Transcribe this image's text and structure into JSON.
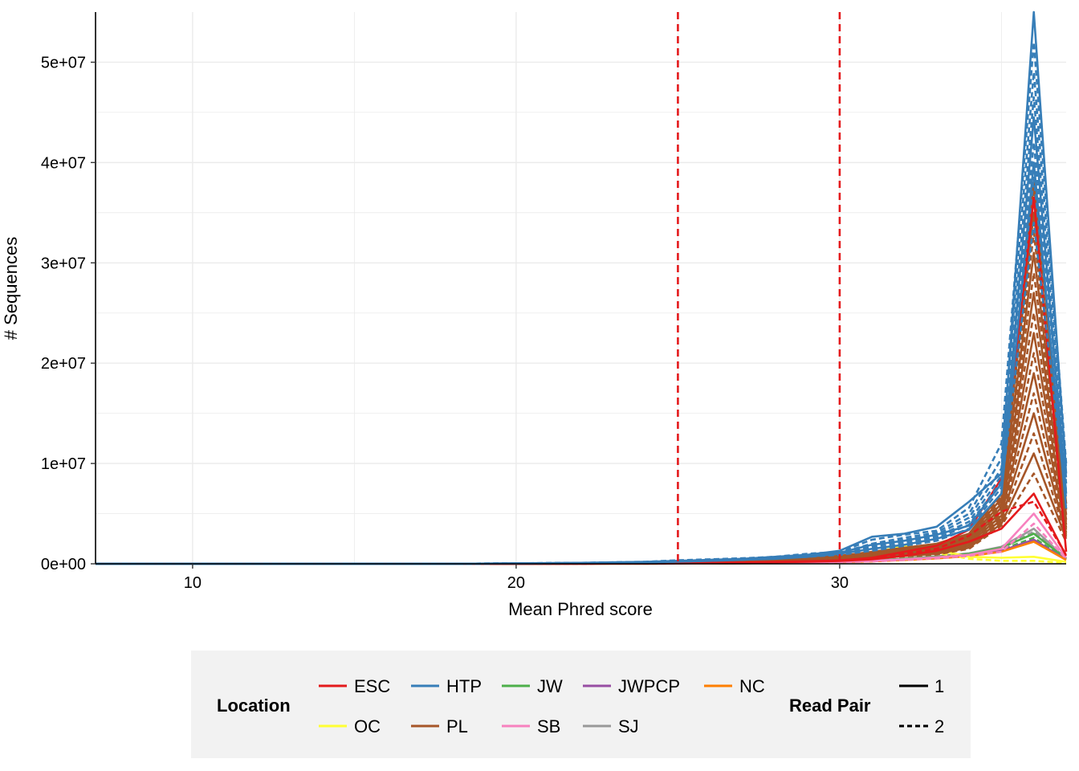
{
  "chart_data": {
    "type": "line",
    "title": "",
    "xlabel": "Mean Phred score",
    "ylabel": "# Sequences",
    "xlim": [
      7,
      37
    ],
    "ylim": [
      0,
      55000000
    ],
    "x_ticks": [
      10,
      20,
      30
    ],
    "x_tick_labels": [
      "10",
      "20",
      "30"
    ],
    "y_ticks": [
      0,
      10000000,
      20000000,
      30000000,
      40000000,
      50000000
    ],
    "y_tick_labels": [
      "0e+00",
      "1e+07",
      "2e+07",
      "3e+07",
      "4e+07",
      "5e+07"
    ],
    "grid": true,
    "reference_lines": [
      {
        "axis": "x",
        "value": 25,
        "color": "#e41a1c",
        "style": "dashed"
      },
      {
        "axis": "x",
        "value": 30,
        "color": "#e41a1c",
        "style": "dashed"
      }
    ],
    "x": [
      7,
      12,
      18,
      20,
      22,
      24,
      25,
      26,
      27,
      28,
      29,
      30,
      31,
      32,
      33,
      34,
      35,
      36,
      37
    ],
    "series": [
      {
        "location": "HTP",
        "read_pair": "1",
        "values": [
          0,
          0,
          0,
          50000,
          100000,
          200000,
          300000,
          400000,
          500000,
          700000,
          900000,
          1300000,
          2700000,
          3000000,
          3700000,
          6200000,
          9000000,
          55000000,
          9000000
        ]
      },
      {
        "location": "HTP",
        "read_pair": "1",
        "values": [
          0,
          0,
          0,
          40000,
          80000,
          150000,
          250000,
          350000,
          450000,
          600000,
          800000,
          1100000,
          1900000,
          2300000,
          2900000,
          3800000,
          8000000,
          44500000,
          7000000
        ]
      },
      {
        "location": "HTP",
        "read_pair": "1",
        "values": [
          0,
          0,
          0,
          30000,
          70000,
          130000,
          220000,
          300000,
          400000,
          500000,
          700000,
          1000000,
          1500000,
          1900000,
          2500000,
          3400000,
          7000000,
          40000000,
          5500000
        ]
      },
      {
        "location": "HTP",
        "read_pair": "2",
        "values": [
          0,
          0,
          0,
          50000,
          100000,
          200000,
          350000,
          450000,
          550000,
          700000,
          1000000,
          1200000,
          2400000,
          2900000,
          3300000,
          5600000,
          12000000,
          52000000,
          10000000
        ]
      },
      {
        "location": "HTP",
        "read_pair": "2",
        "values": [
          0,
          0,
          0,
          45000,
          90000,
          180000,
          300000,
          420000,
          520000,
          650000,
          900000,
          1100000,
          2000000,
          2600000,
          3100000,
          5000000,
          10500000,
          49000000,
          9500000
        ]
      },
      {
        "location": "HTP",
        "read_pair": "2",
        "values": [
          0,
          0,
          0,
          40000,
          85000,
          170000,
          280000,
          400000,
          480000,
          620000,
          850000,
          1050000,
          1800000,
          2400000,
          2900000,
          4600000,
          9500000,
          46500000,
          8500000
        ]
      },
      {
        "location": "HTP",
        "read_pair": "2",
        "values": [
          0,
          0,
          0,
          35000,
          80000,
          160000,
          260000,
          380000,
          460000,
          600000,
          800000,
          1000000,
          1700000,
          2200000,
          2700000,
          4200000,
          8800000,
          42000000,
          8000000
        ]
      },
      {
        "location": "HTP",
        "read_pair": "2",
        "values": [
          0,
          0,
          0,
          30000,
          70000,
          140000,
          240000,
          350000,
          430000,
          560000,
          750000,
          950000,
          1500000,
          2000000,
          2500000,
          3900000,
          8200000,
          38500000,
          7200000
        ]
      },
      {
        "location": "HTP",
        "read_pair": "2",
        "values": [
          0,
          0,
          0,
          30000,
          60000,
          120000,
          220000,
          320000,
          400000,
          520000,
          700000,
          900000,
          1300000,
          1800000,
          2300000,
          3500000,
          7600000,
          34000000,
          6500000
        ]
      },
      {
        "location": "PL",
        "read_pair": "1",
        "values": [
          0,
          0,
          0,
          20000,
          60000,
          110000,
          200000,
          280000,
          350000,
          450000,
          600000,
          800000,
          1200000,
          1600000,
          2000000,
          3000000,
          7000000,
          38000000,
          6000000
        ]
      },
      {
        "location": "PL",
        "read_pair": "1",
        "values": [
          0,
          0,
          0,
          20000,
          50000,
          100000,
          180000,
          250000,
          320000,
          420000,
          560000,
          750000,
          1100000,
          1450000,
          1850000,
          2800000,
          6500000,
          35000000,
          5400000
        ]
      },
      {
        "location": "PL",
        "read_pair": "1",
        "values": [
          0,
          0,
          0,
          15000,
          45000,
          90000,
          160000,
          230000,
          300000,
          390000,
          520000,
          700000,
          1000000,
          1300000,
          1700000,
          2600000,
          6000000,
          31000000,
          4900000
        ]
      },
      {
        "location": "PL",
        "read_pair": "1",
        "values": [
          0,
          0,
          0,
          15000,
          40000,
          80000,
          150000,
          210000,
          280000,
          360000,
          480000,
          650000,
          900000,
          1200000,
          1550000,
          2400000,
          5600000,
          27000000,
          4400000
        ]
      },
      {
        "location": "PL",
        "read_pair": "1",
        "values": [
          0,
          0,
          0,
          12000,
          35000,
          70000,
          130000,
          190000,
          250000,
          330000,
          440000,
          600000,
          820000,
          1100000,
          1400000,
          2200000,
          5200000,
          23000000,
          3900000
        ]
      },
      {
        "location": "PL",
        "read_pair": "1",
        "values": [
          0,
          0,
          0,
          10000,
          30000,
          60000,
          110000,
          170000,
          220000,
          300000,
          400000,
          540000,
          740000,
          980000,
          1250000,
          2000000,
          4800000,
          19000000,
          3400000
        ]
      },
      {
        "location": "PL",
        "read_pair": "1",
        "values": [
          0,
          0,
          0,
          10000,
          25000,
          50000,
          100000,
          150000,
          200000,
          270000,
          360000,
          490000,
          660000,
          880000,
          1120000,
          1800000,
          4400000,
          15000000,
          2900000
        ]
      },
      {
        "location": "PL",
        "read_pair": "1",
        "values": [
          0,
          0,
          0,
          8000,
          20000,
          40000,
          90000,
          130000,
          180000,
          240000,
          320000,
          440000,
          590000,
          780000,
          1000000,
          1600000,
          4000000,
          11000000,
          2500000
        ]
      },
      {
        "location": "PL",
        "read_pair": "2",
        "values": [
          0,
          0,
          0,
          20000,
          55000,
          105000,
          190000,
          270000,
          340000,
          440000,
          580000,
          780000,
          1150000,
          1550000,
          1950000,
          2900000,
          6800000,
          37000000,
          5800000
        ]
      },
      {
        "location": "PL",
        "read_pair": "2",
        "values": [
          0,
          0,
          0,
          18000,
          48000,
          95000,
          170000,
          240000,
          310000,
          400000,
          540000,
          720000,
          1050000,
          1400000,
          1780000,
          2700000,
          6300000,
          33000000,
          5200000
        ]
      },
      {
        "location": "PL",
        "read_pair": "2",
        "values": [
          0,
          0,
          0,
          14000,
          42000,
          85000,
          155000,
          220000,
          290000,
          370000,
          500000,
          670000,
          950000,
          1250000,
          1620000,
          2500000,
          5800000,
          29000000,
          4600000
        ]
      },
      {
        "location": "PL",
        "read_pair": "2",
        "values": [
          0,
          0,
          0,
          12000,
          36000,
          75000,
          140000,
          200000,
          260000,
          340000,
          460000,
          620000,
          860000,
          1150000,
          1480000,
          2300000,
          5400000,
          25000000,
          4100000
        ]
      },
      {
        "location": "PL",
        "read_pair": "2",
        "values": [
          0,
          0,
          0,
          10000,
          32000,
          65000,
          120000,
          180000,
          235000,
          310000,
          420000,
          570000,
          780000,
          1030000,
          1330000,
          2100000,
          5000000,
          21000000,
          3600000
        ]
      },
      {
        "location": "PL",
        "read_pair": "2",
        "values": [
          0,
          0,
          0,
          9000,
          28000,
          55000,
          105000,
          160000,
          210000,
          285000,
          380000,
          520000,
          700000,
          930000,
          1190000,
          1900000,
          4600000,
          17000000,
          3100000
        ]
      },
      {
        "location": "PL",
        "read_pair": "2",
        "values": [
          0,
          0,
          0,
          8000,
          22000,
          45000,
          95000,
          140000,
          190000,
          255000,
          340000,
          465000,
          625000,
          830000,
          1060000,
          1700000,
          4200000,
          13000000,
          2700000
        ]
      },
      {
        "location": "PL",
        "read_pair": "2",
        "values": [
          0,
          0,
          0,
          6000,
          18000,
          35000,
          80000,
          120000,
          165000,
          220000,
          300000,
          410000,
          550000,
          730000,
          930000,
          1500000,
          3800000,
          9000000,
          2200000
        ]
      },
      {
        "location": "ESC",
        "read_pair": "1",
        "values": [
          0,
          0,
          0,
          10000,
          20000,
          40000,
          70000,
          100000,
          140000,
          190000,
          250000,
          340000,
          600000,
          1200000,
          1800000,
          3400000,
          8500000,
          36500000,
          1200000
        ]
      },
      {
        "location": "ESC",
        "read_pair": "1",
        "values": [
          0,
          0,
          0,
          5000,
          15000,
          30000,
          50000,
          80000,
          110000,
          150000,
          200000,
          280000,
          450000,
          800000,
          1300000,
          2200000,
          3500000,
          7000000,
          800000
        ]
      },
      {
        "location": "ESC",
        "read_pair": "2",
        "values": [
          0,
          0,
          0,
          8000,
          18000,
          35000,
          60000,
          90000,
          120000,
          170000,
          230000,
          310000,
          500000,
          1000000,
          1500000,
          2800000,
          5200000,
          6200000,
          900000
        ]
      },
      {
        "location": "SB",
        "read_pair": "1",
        "values": [
          0,
          0,
          0,
          5000,
          10000,
          20000,
          35000,
          50000,
          70000,
          100000,
          140000,
          190000,
          300000,
          450000,
          650000,
          900000,
          1500000,
          5000000,
          600000
        ]
      },
      {
        "location": "SB",
        "read_pair": "2",
        "values": [
          0,
          0,
          0,
          4000,
          8000,
          16000,
          30000,
          45000,
          60000,
          85000,
          120000,
          160000,
          250000,
          380000,
          550000,
          800000,
          1200000,
          4000000,
          500000
        ]
      },
      {
        "location": "OC",
        "read_pair": "1",
        "values": [
          0,
          0,
          0,
          3000,
          8000,
          15000,
          30000,
          50000,
          80000,
          120000,
          200000,
          400000,
          1100000,
          1800000,
          1400000,
          700000,
          600000,
          700000,
          200000
        ]
      },
      {
        "location": "OC",
        "read_pair": "2",
        "values": [
          0,
          0,
          0,
          3000,
          7000,
          14000,
          28000,
          45000,
          70000,
          110000,
          180000,
          350000,
          900000,
          1500000,
          1100000,
          500000,
          300000,
          300000,
          100000
        ]
      },
      {
        "location": "JW",
        "read_pair": "1",
        "values": [
          0,
          0,
          0,
          4000,
          9000,
          18000,
          32000,
          50000,
          70000,
          100000,
          140000,
          200000,
          320000,
          500000,
          700000,
          1000000,
          1600000,
          3000000,
          500000
        ]
      },
      {
        "location": "JW",
        "read_pair": "2",
        "values": [
          0,
          0,
          0,
          3500,
          8000,
          16000,
          29000,
          45000,
          64000,
          90000,
          130000,
          185000,
          290000,
          460000,
          650000,
          900000,
          1400000,
          2600000,
          450000
        ]
      },
      {
        "location": "SJ",
        "read_pair": "1",
        "values": [
          0,
          0,
          0,
          5000,
          12000,
          22000,
          38000,
          55000,
          75000,
          105000,
          145000,
          210000,
          330000,
          520000,
          740000,
          1050000,
          1700000,
          3500000,
          500000
        ]
      },
      {
        "location": "SJ",
        "read_pair": "2",
        "values": [
          0,
          0,
          0,
          4500,
          11000,
          20000,
          35000,
          52000,
          72000,
          100000,
          140000,
          200000,
          320000,
          500000,
          720000,
          1000000,
          1600000,
          3200000,
          480000
        ]
      },
      {
        "location": "SJ",
        "read_pair": "2",
        "values": [
          0,
          0,
          0,
          4000,
          10000,
          18000,
          32000,
          48000,
          68000,
          95000,
          130000,
          190000,
          300000,
          470000,
          680000,
          950000,
          1500000,
          2200000,
          400000
        ]
      },
      {
        "location": "JWPCP",
        "read_pair": "1",
        "values": [
          0,
          0,
          0,
          3000,
          7000,
          14000,
          26000,
          40000,
          56000,
          80000,
          115000,
          160000,
          250000,
          400000,
          560000,
          800000,
          1300000,
          2400000,
          400000
        ]
      },
      {
        "location": "NC",
        "read_pair": "1",
        "values": [
          0,
          0,
          0,
          3000,
          7000,
          13000,
          24000,
          38000,
          54000,
          76000,
          110000,
          150000,
          240000,
          380000,
          540000,
          760000,
          1200000,
          2200000,
          380000
        ]
      }
    ]
  },
  "legend": {
    "location_title": "Location",
    "locations": [
      {
        "label": "ESC",
        "color": "#e41a1c"
      },
      {
        "label": "HTP",
        "color": "#377eb8"
      },
      {
        "label": "JW",
        "color": "#4daf4a"
      },
      {
        "label": "JWPCP",
        "color": "#984ea3"
      },
      {
        "label": "NC",
        "color": "#ff7f00"
      },
      {
        "label": "OC",
        "color": "#ffff33"
      },
      {
        "label": "PL",
        "color": "#a65628"
      },
      {
        "label": "SB",
        "color": "#f781bf"
      },
      {
        "label": "SJ",
        "color": "#999999"
      }
    ],
    "readpair_title": "Read Pair",
    "readpairs": [
      {
        "label": "1",
        "style": "solid"
      },
      {
        "label": "2",
        "style": "dashed"
      }
    ]
  },
  "colors": {
    "plot_background": "#ffffff",
    "grid": "#ebebeb",
    "legend_background": "#f2f2f2",
    "reference_line": "#e41a1c"
  }
}
